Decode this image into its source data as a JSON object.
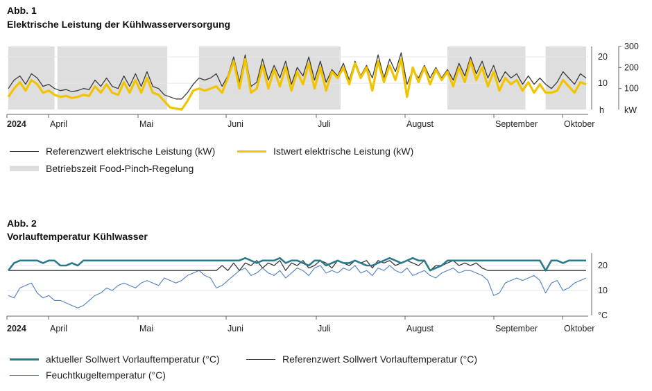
{
  "fig1": {
    "label": "Abb. 1",
    "title": "Elektrische Leistung der Kühlwasserversorgung",
    "legend": {
      "reference": "Referenzwert elektrische Leistung (kW)",
      "actual": "Istwert elektrische Leistung (kW)",
      "operating": "Betriebszeit Food-Pinch-Regelung"
    }
  },
  "fig2": {
    "label": "Abb. 2",
    "title": "Vorlauftemperatur Kühlwasser",
    "legend": {
      "setpoint": "aktueller Sollwert Vorlauftemperatur (°C)",
      "reference": "Referenzwert Sollwert Vorlauftemperatur (°C)",
      "wetbulb": "Feuchtkugeltemperatur (°C)"
    }
  },
  "colors": {
    "reference": "#3a3a3a",
    "actual": "#f2c400",
    "shade": "#dedede",
    "setpoint": "#2a7a8c",
    "wetbulb": "#4f7fc4"
  },
  "chart_data": [
    {
      "type": "line",
      "title": "Elektrische Leistung der Kühlwasserversorgung",
      "x_labels": [
        "2024",
        "April",
        "Mai",
        "Juni",
        "Juli",
        "August",
        "September",
        "Oktober"
      ],
      "x_unit": "day of year 2024",
      "y_left": {
        "label": "h",
        "ticks": [
          10,
          20
        ],
        "ylim": [
          0,
          24
        ]
      },
      "y_right": {
        "label": "kW",
        "ticks": [
          100,
          200,
          300
        ],
        "ylim": [
          0,
          300
        ]
      },
      "operating_periods": [
        [
          0,
          16
        ],
        [
          17,
          55
        ],
        [
          66,
          115
        ],
        [
          152,
          179
        ],
        [
          186,
          200
        ]
      ],
      "series": [
        {
          "name": "Referenzwert elektrische Leistung (kW)",
          "x": [
            0,
            2,
            4,
            6,
            8,
            10,
            12,
            14,
            16,
            18,
            20,
            22,
            24,
            26,
            28,
            30,
            32,
            34,
            36,
            38,
            40,
            42,
            44,
            46,
            48,
            50,
            52,
            54,
            56,
            58,
            60,
            62,
            64,
            66,
            68,
            70,
            72,
            74,
            76,
            78,
            80,
            82,
            84,
            86,
            88,
            90,
            92,
            94,
            96,
            98,
            100,
            102,
            104,
            106,
            108,
            110,
            112,
            114,
            116,
            118,
            120,
            122,
            124,
            126,
            128,
            130,
            132,
            134,
            136,
            138,
            140,
            142,
            144,
            146,
            148,
            150,
            152,
            154,
            156,
            158,
            160,
            162,
            164,
            166,
            168,
            170,
            172,
            174,
            176,
            178,
            180,
            182,
            184,
            186,
            188,
            190,
            192,
            194,
            196,
            198,
            200
          ],
          "y": [
            100,
            140,
            160,
            120,
            170,
            150,
            110,
            120,
            100,
            90,
            95,
            85,
            90,
            100,
            95,
            140,
            110,
            150,
            110,
            100,
            160,
            110,
            170,
            110,
            180,
            110,
            100,
            70,
            60,
            50,
            50,
            80,
            120,
            150,
            140,
            150,
            170,
            110,
            160,
            250,
            130,
            260,
            110,
            130,
            240,
            140,
            210,
            150,
            230,
            120,
            200,
            160,
            250,
            140,
            230,
            130,
            190,
            160,
            220,
            140,
            230,
            160,
            210,
            150,
            260,
            150,
            240,
            180,
            270,
            120,
            190,
            150,
            210,
            150,
            200,
            150,
            190,
            140,
            220,
            160,
            250,
            170,
            230,
            150,
            210,
            130,
            180,
            150,
            170,
            120,
            160,
            120,
            150,
            120,
            100,
            130,
            180,
            150,
            120,
            170,
            150
          ]
        },
        {
          "name": "Istwert elektrische Leistung (kW)",
          "x": [
            0,
            2,
            4,
            6,
            8,
            10,
            12,
            14,
            16,
            18,
            20,
            22,
            24,
            26,
            28,
            30,
            32,
            34,
            36,
            38,
            40,
            42,
            44,
            46,
            48,
            50,
            52,
            54,
            56,
            58,
            60,
            62,
            64,
            66,
            68,
            70,
            72,
            74,
            76,
            78,
            80,
            82,
            84,
            86,
            88,
            90,
            92,
            94,
            96,
            98,
            100,
            102,
            104,
            106,
            108,
            110,
            112,
            114,
            116,
            118,
            120,
            122,
            124,
            126,
            128,
            130,
            132,
            134,
            136,
            138,
            140,
            142,
            144,
            146,
            148,
            150,
            152,
            154,
            156,
            158,
            160,
            162,
            164,
            166,
            168,
            170,
            172,
            174,
            176,
            178,
            180,
            182,
            184,
            186,
            188,
            190,
            192,
            194,
            196,
            198,
            200
          ],
          "y": [
            60,
            100,
            130,
            90,
            140,
            120,
            80,
            90,
            70,
            60,
            65,
            55,
            60,
            70,
            65,
            110,
            80,
            120,
            80,
            70,
            130,
            80,
            140,
            80,
            150,
            80,
            70,
            40,
            10,
            5,
            0,
            40,
            90,
            100,
            90,
            100,
            110,
            80,
            150,
            230,
            100,
            240,
            80,
            100,
            210,
            100,
            190,
            110,
            200,
            90,
            180,
            120,
            220,
            100,
            200,
            90,
            180,
            150,
            200,
            120,
            220,
            150,
            200,
            90,
            230,
            130,
            210,
            140,
            240,
            60,
            200,
            130,
            200,
            120,
            190,
            140,
            180,
            110,
            200,
            130,
            230,
            140,
            200,
            110,
            180,
            90,
            150,
            120,
            140,
            90,
            130,
            80,
            120,
            80,
            80,
            90,
            140,
            110,
            80,
            130,
            120
          ]
        }
      ]
    },
    {
      "type": "line",
      "title": "Vorlauftemperatur Kühlwasser",
      "x_labels": [
        "2024",
        "April",
        "Mai",
        "Juni",
        "Juli",
        "August",
        "September",
        "Oktober"
      ],
      "x_unit": "day of year 2024",
      "y": {
        "label": "°C",
        "ticks": [
          10,
          20
        ],
        "ylim": [
          0,
          25
        ]
      },
      "series": [
        {
          "name": "aktueller Sollwert Vorlauftemperatur (°C)",
          "x": [
            0,
            2,
            4,
            6,
            8,
            10,
            12,
            14,
            16,
            18,
            20,
            22,
            24,
            26,
            28,
            30,
            32,
            34,
            36,
            38,
            40,
            42,
            44,
            46,
            48,
            50,
            52,
            54,
            56,
            58,
            60,
            62,
            64,
            66,
            68,
            70,
            72,
            74,
            76,
            78,
            80,
            82,
            84,
            86,
            88,
            90,
            92,
            94,
            96,
            98,
            100,
            102,
            104,
            106,
            108,
            110,
            112,
            114,
            116,
            118,
            120,
            122,
            124,
            126,
            128,
            130,
            132,
            134,
            136,
            138,
            140,
            142,
            144,
            146,
            148,
            150,
            152,
            154,
            156,
            158,
            160,
            162,
            164,
            166,
            168,
            170,
            172,
            174,
            176,
            178,
            180,
            182,
            184,
            186,
            188,
            190,
            192,
            194,
            196,
            198,
            200
          ],
          "y": [
            18,
            21,
            22,
            22,
            22,
            22,
            21,
            22,
            22,
            20,
            20,
            21,
            20,
            22,
            22,
            22,
            22,
            22,
            22,
            22,
            22,
            22,
            22,
            22,
            22,
            22,
            22,
            22,
            22,
            22,
            22,
            22,
            22,
            22,
            22,
            22,
            22,
            22,
            22,
            22,
            22,
            23,
            22,
            21,
            22,
            22,
            22,
            23,
            21,
            22,
            22,
            21,
            20,
            22,
            22,
            20,
            21,
            22,
            21,
            21,
            22,
            21,
            20,
            20,
            21,
            22,
            23,
            22,
            21,
            22,
            23,
            22,
            22,
            18,
            19,
            20,
            22,
            22,
            22,
            22,
            22,
            22,
            22,
            22,
            22,
            22,
            22,
            22,
            22,
            22,
            22,
            22,
            22,
            18,
            22,
            22,
            21,
            22,
            22,
            22,
            22
          ]
        },
        {
          "name": "Referenzwert Sollwert Vorlauftemperatur (°C)",
          "x": [
            0,
            2,
            4,
            6,
            8,
            10,
            12,
            14,
            16,
            18,
            20,
            22,
            24,
            26,
            28,
            30,
            32,
            34,
            36,
            38,
            40,
            42,
            44,
            46,
            48,
            50,
            52,
            54,
            56,
            58,
            60,
            62,
            64,
            66,
            68,
            70,
            72,
            74,
            76,
            78,
            80,
            82,
            84,
            86,
            88,
            90,
            92,
            94,
            96,
            98,
            100,
            102,
            104,
            106,
            108,
            110,
            112,
            114,
            116,
            118,
            120,
            122,
            124,
            126,
            128,
            130,
            132,
            134,
            136,
            138,
            140,
            142,
            144,
            146,
            148,
            150,
            152,
            154,
            156,
            158,
            160,
            162,
            164,
            166,
            168,
            170,
            172,
            174,
            176,
            178,
            180,
            182,
            184,
            186,
            188,
            190,
            192,
            194,
            196,
            198,
            200
          ],
          "y": [
            18,
            18,
            18,
            18,
            18,
            18,
            18,
            18,
            18,
            18,
            18,
            18,
            18,
            18,
            18,
            18,
            18,
            18,
            18,
            18,
            18,
            18,
            18,
            18,
            18,
            18,
            18,
            18,
            18,
            18,
            18,
            18,
            18,
            18,
            18,
            18,
            18,
            20,
            18,
            21,
            18,
            21,
            20,
            22,
            19,
            21,
            20,
            22,
            18,
            21,
            20,
            22,
            19,
            20,
            22,
            21,
            19,
            22,
            21,
            20,
            22,
            21,
            22,
            19,
            22,
            21,
            22,
            20,
            21,
            22,
            21,
            20,
            22,
            18,
            20,
            20,
            21,
            22,
            20,
            21,
            20,
            21,
            19,
            18,
            18,
            18,
            18,
            18,
            18,
            18,
            18,
            18,
            18,
            18,
            18,
            18,
            18,
            18,
            18,
            18,
            18
          ]
        },
        {
          "name": "Feuchtkugeltemperatur (°C)",
          "x": [
            0,
            2,
            4,
            6,
            8,
            10,
            12,
            14,
            16,
            18,
            20,
            22,
            24,
            26,
            28,
            30,
            32,
            34,
            36,
            38,
            40,
            42,
            44,
            46,
            48,
            50,
            52,
            54,
            56,
            58,
            60,
            62,
            64,
            66,
            68,
            70,
            72,
            74,
            76,
            78,
            80,
            82,
            84,
            86,
            88,
            90,
            92,
            94,
            96,
            98,
            100,
            102,
            104,
            106,
            108,
            110,
            112,
            114,
            116,
            118,
            120,
            122,
            124,
            126,
            128,
            130,
            132,
            134,
            136,
            138,
            140,
            142,
            144,
            146,
            148,
            150,
            152,
            154,
            156,
            158,
            160,
            162,
            164,
            166,
            168,
            170,
            172,
            174,
            176,
            178,
            180,
            182,
            184,
            186,
            188,
            190,
            192,
            194,
            196,
            198,
            200
          ],
          "y": [
            8,
            7,
            11,
            12,
            13,
            9,
            7,
            8,
            6,
            6,
            5,
            4,
            3,
            4,
            6,
            8,
            9,
            11,
            10,
            12,
            13,
            12,
            11,
            13,
            14,
            13,
            12,
            15,
            14,
            13,
            14,
            16,
            17,
            18,
            16,
            15,
            11,
            12,
            14,
            16,
            18,
            19,
            16,
            17,
            19,
            17,
            16,
            18,
            15,
            17,
            19,
            18,
            16,
            19,
            20,
            17,
            18,
            17,
            19,
            18,
            20,
            17,
            18,
            16,
            19,
            18,
            20,
            18,
            17,
            19,
            16,
            17,
            18,
            16,
            15,
            17,
            18,
            19,
            17,
            18,
            18,
            17,
            16,
            14,
            8,
            9,
            13,
            14,
            15,
            14,
            15,
            16,
            14,
            9,
            13,
            14,
            10,
            11,
            13,
            14,
            15
          ]
        }
      ]
    }
  ]
}
